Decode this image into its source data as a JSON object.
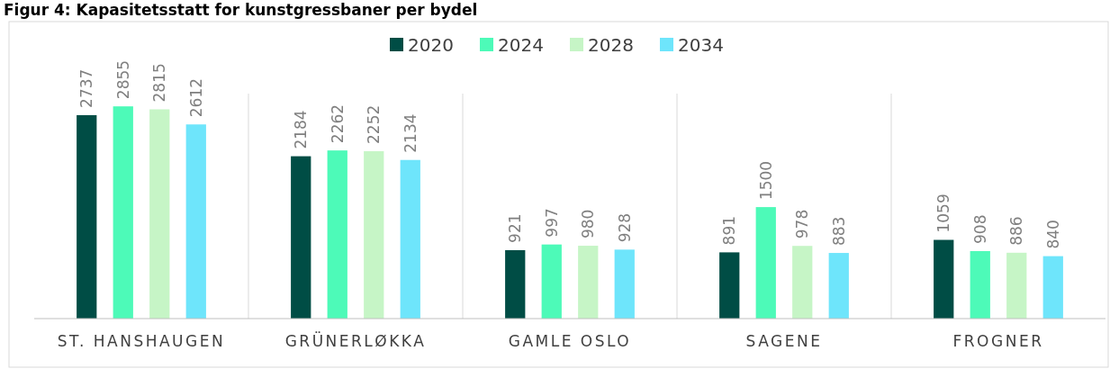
{
  "chart_data": {
    "type": "bar",
    "title": "Figur 4: Kapasitetsstatt for kunstgressbaner per bydel",
    "categories": [
      "ST. HANSHAUGEN",
      "GRÜNERLØKKA",
      "GAMLE OSLO",
      "SAGENE",
      "FROGNER"
    ],
    "series": [
      {
        "name": "2020",
        "color": "#004d45",
        "values": [
          2737,
          2184,
          921,
          891,
          1059
        ]
      },
      {
        "name": "2024",
        "color": "#4dfab8",
        "values": [
          2855,
          2262,
          997,
          1500,
          908
        ]
      },
      {
        "name": "2028",
        "color": "#c6f5c6",
        "values": [
          2815,
          2252,
          980,
          978,
          886
        ]
      },
      {
        "name": "2034",
        "color": "#6ee5fb",
        "values": [
          2612,
          2134,
          928,
          883,
          840
        ]
      }
    ],
    "data_labels": true,
    "legend": "top",
    "grid": false,
    "tick_labels": "x"
  }
}
